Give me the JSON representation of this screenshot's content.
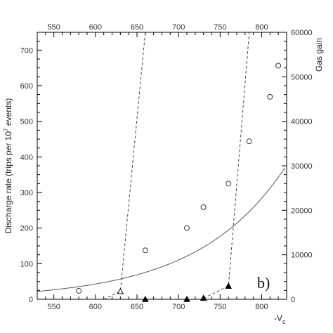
{
  "chart_data": {
    "type": "scatter",
    "x_range": [
      530,
      830
    ],
    "left_y_range": [
      0,
      750
    ],
    "right_y_range": [
      0,
      60000
    ],
    "top_ticks": [
      "550",
      "600",
      "650",
      "700",
      "750",
      "800"
    ],
    "bottom_ticks": [
      "550",
      "600",
      "650",
      "700",
      "750",
      "800"
    ],
    "left_ticks": [
      "0",
      "100",
      "200",
      "300",
      "400",
      "500",
      "600",
      "700"
    ],
    "right_ticks": [
      "0",
      "10000",
      "20000",
      "30000",
      "40000",
      "50000",
      "60000"
    ],
    "ylabel_prefix": "Discharge rate (trips per 10",
    "ylabel_sup": "7",
    "ylabel_suffix": " events)",
    "y2label": "Gas gain",
    "xlabel_main": "-V",
    "xlabel_sub": "c",
    "annotation": "b)",
    "gain_points": {
      "x": [
        580,
        660,
        710,
        730,
        760,
        785,
        810,
        820
      ],
      "y": [
        1900,
        11000,
        16000,
        20700,
        26000,
        35500,
        45500,
        52500
      ]
    },
    "gain_fit": {
      "a": 17.7,
      "b": 0.00945,
      "x0": 530,
      "x_end": 828
    },
    "open_triangles": {
      "x": [
        630
      ],
      "y": [
        22
      ],
      "line": {
        "x": [
          610,
          630,
          660
        ],
        "y": [
          0,
          22,
          750
        ]
      }
    },
    "filled_triangles": {
      "x": [
        660,
        710,
        730,
        760
      ],
      "y": [
        0,
        0,
        3,
        37
      ],
      "line": {
        "x": [
          730,
          760,
          785
        ],
        "y": [
          3,
          37,
          750
        ]
      }
    }
  }
}
